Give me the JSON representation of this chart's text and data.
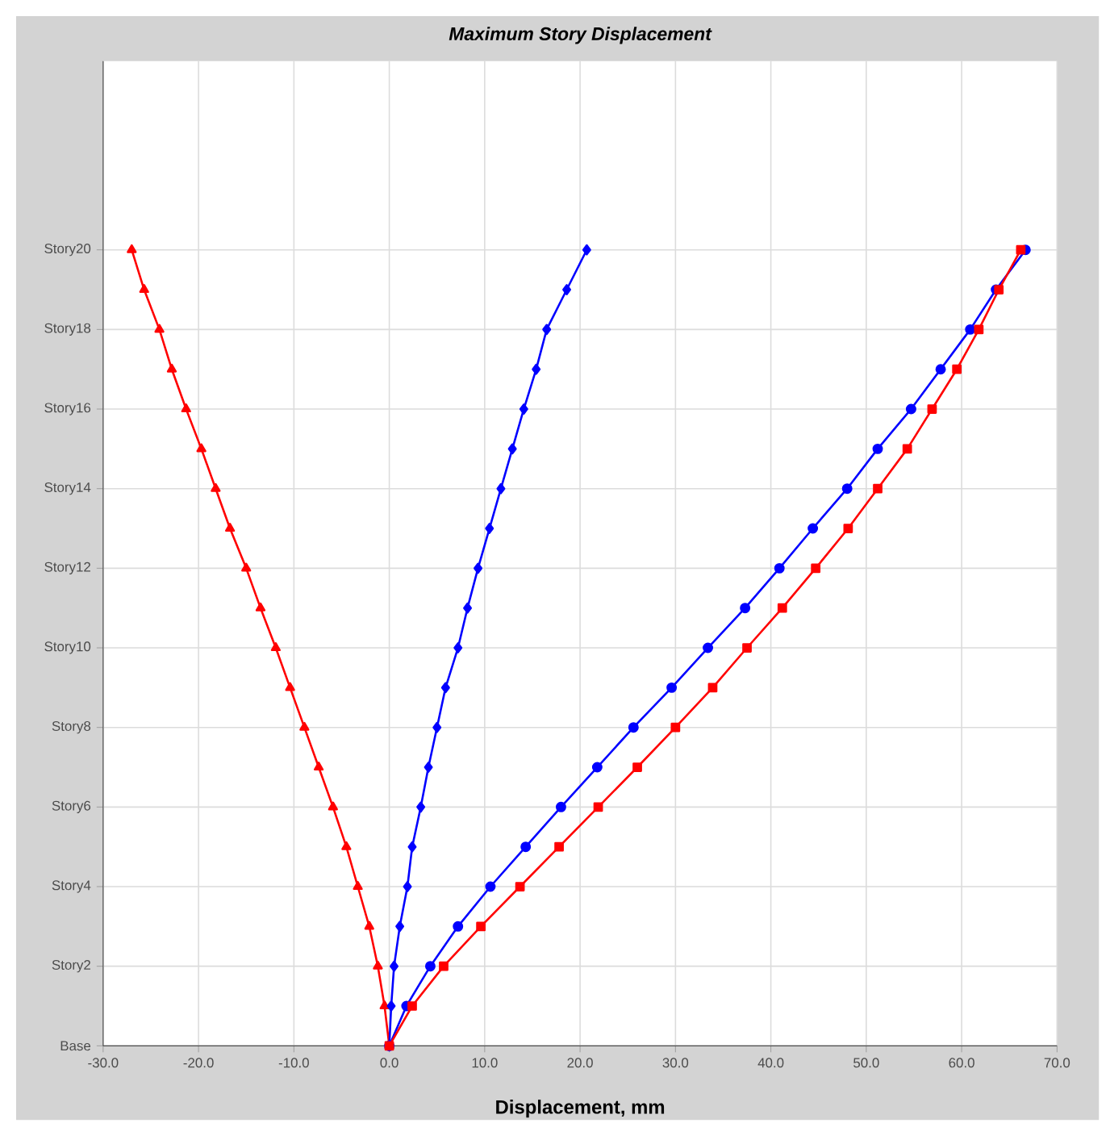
{
  "chart_data": {
    "type": "line",
    "orientation": "horizontal",
    "title": "Maximum Story Displacement",
    "xlabel": "Displacement, mm",
    "categories": [
      "Story20",
      null,
      "Story18",
      null,
      "Story16",
      null,
      "Story14",
      null,
      "Story12",
      null,
      "Story10",
      null,
      "Story8",
      null,
      "Story6",
      null,
      "Story4",
      null,
      "Story2",
      null,
      "Base"
    ],
    "xlim": [
      -30,
      70
    ],
    "xticks": [
      {
        "value": -30,
        "label": "-30.0"
      },
      {
        "value": -20,
        "label": "-20.0"
      },
      {
        "value": -10,
        "label": "-10.0"
      },
      {
        "value": 0,
        "label": "0.0"
      },
      {
        "value": 10,
        "label": "10.0"
      },
      {
        "value": 20,
        "label": "20.0"
      },
      {
        "value": 30,
        "label": "30.0"
      },
      {
        "value": 40,
        "label": "40.0"
      },
      {
        "value": 50,
        "label": "50.0"
      },
      {
        "value": 60,
        "label": "60.0"
      },
      {
        "value": 70,
        "label": "70.0"
      }
    ],
    "grid": true,
    "line_style": "solid",
    "series": [
      {
        "color": "#ff0000",
        "marker": "triangle",
        "values": [
          -27.0,
          -25.7,
          -24.1,
          -22.8,
          -21.3,
          -19.7,
          -18.2,
          -16.7,
          -15.0,
          -13.5,
          -11.9,
          -10.4,
          -8.9,
          -7.4,
          -5.9,
          -4.5,
          -3.3,
          -2.1,
          -1.2,
          -0.5,
          0
        ]
      },
      {
        "color": "#0000ff",
        "marker": "diamond",
        "values": [
          20.7,
          18.6,
          16.5,
          15.4,
          14.1,
          12.9,
          11.7,
          10.5,
          9.3,
          8.2,
          7.2,
          5.9,
          5.0,
          4.1,
          3.3,
          2.4,
          1.9,
          1.1,
          0.5,
          0.2,
          0
        ]
      },
      {
        "color": "#0000ff",
        "marker": "circle",
        "values": [
          66.7,
          63.6,
          60.9,
          57.8,
          54.7,
          51.2,
          48.0,
          44.4,
          40.9,
          37.3,
          33.4,
          29.6,
          25.6,
          21.8,
          18.0,
          14.3,
          10.6,
          7.2,
          4.3,
          1.8,
          0
        ]
      },
      {
        "color": "#ff0000",
        "marker": "square",
        "values": [
          66.2,
          63.9,
          61.8,
          59.5,
          56.9,
          54.3,
          51.2,
          48.1,
          44.7,
          41.2,
          37.5,
          33.9,
          30.0,
          26.0,
          21.9,
          17.8,
          13.7,
          9.6,
          5.7,
          2.4,
          0
        ]
      }
    ]
  }
}
